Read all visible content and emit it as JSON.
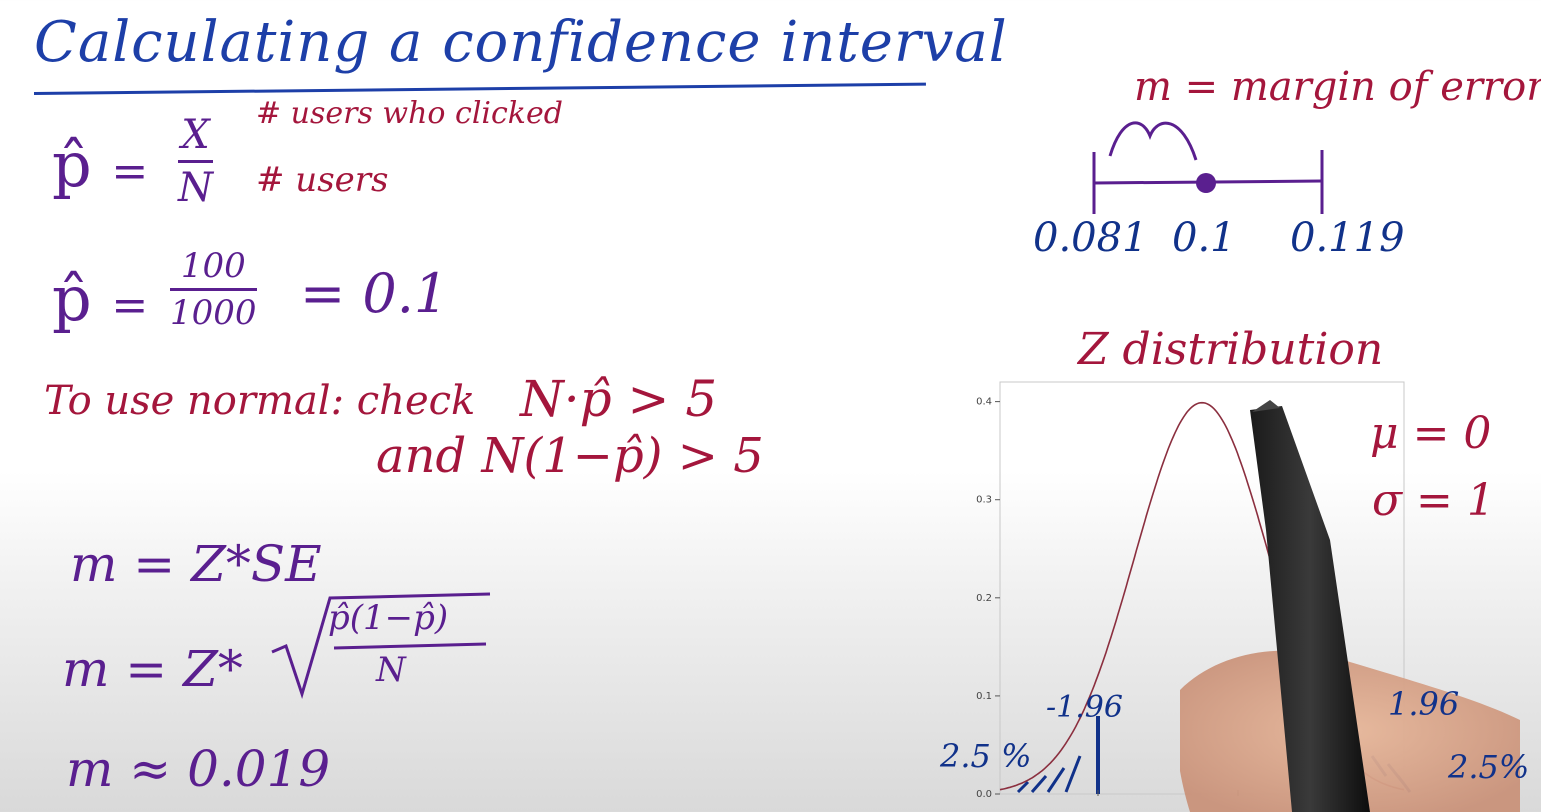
{
  "title": "Calculating a confidence interval",
  "estimate": {
    "symbol": "p̂",
    "equals": "=",
    "numerator": "X",
    "denominator": "N",
    "numerator_note": "# users who clicked",
    "denominator_note": "# users"
  },
  "example": {
    "symbol": "p̂",
    "equals": "=",
    "numerator": "100",
    "denominator": "1000",
    "result": "= 0.1"
  },
  "normal_check": {
    "label": "To use normal: check",
    "condition1": "N·p̂ > 5",
    "condition2": "and  N(1−p̂) > 5"
  },
  "margin": {
    "formula1": "m = Z*SE",
    "formula2_lhs": "m = Z*",
    "formula2_numerator": "p̂(1−p̂)",
    "formula2_denominator": "N",
    "formula3": "m ≈ 0.019"
  },
  "interval": {
    "label": "m = margin of error",
    "lower": "0.081",
    "center": "0.1",
    "upper": "0.119"
  },
  "distribution": {
    "title": "Z distribution",
    "mu": "μ = 0",
    "sigma": "σ = 1",
    "neg_z": "-1.96",
    "pos_z": "1.96",
    "left_tail": "2.5 %",
    "right_tail": "2.5%"
  },
  "chart_data": {
    "type": "line",
    "yticks": [
      "0.0",
      "0.1",
      "0.2",
      "0.3",
      "0.4"
    ],
    "ylim": [
      0,
      0.42
    ],
    "xlim": [
      -3,
      3
    ],
    "series": [
      {
        "mean": 0,
        "sd": 1
      }
    ],
    "accent": "#8b2f3f"
  }
}
